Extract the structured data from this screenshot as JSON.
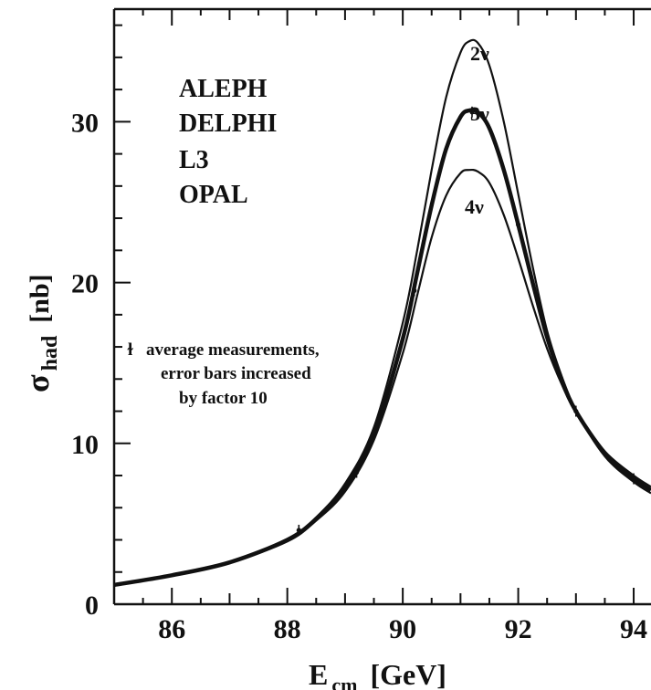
{
  "chart_data": {
    "type": "line",
    "title": "",
    "xlabel_main": "E",
    "xlabel_sub": "cm",
    "xlabel_unit": "[GeV]",
    "ylabel_main": "σ",
    "ylabel_sub": "had",
    "ylabel_unit": "[nb]",
    "xlim": [
      85,
      94.3
    ],
    "ylim": [
      0,
      37
    ],
    "x_ticks": [
      86,
      88,
      90,
      92,
      94
    ],
    "y_ticks": [
      0,
      10,
      20,
      30
    ],
    "x_tick_labels": [
      "86",
      "88",
      "90",
      "92",
      "94"
    ],
    "y_tick_labels": [
      "0",
      "10",
      "20",
      "30"
    ],
    "grid": false,
    "experiments": [
      "ALEPH",
      "DELPHI",
      "L3",
      "OPAL"
    ],
    "note": {
      "marker": "ɫ",
      "lines": [
        "average measurements,",
        "error bars increased",
        "by factor 10"
      ]
    },
    "series": [
      {
        "name": "2ν",
        "x": [
          85,
          86,
          87,
          88,
          88.5,
          89,
          89.5,
          90,
          90.25,
          90.5,
          90.75,
          91,
          91.15,
          91.3,
          91.5,
          91.75,
          92,
          92.25,
          92.5,
          92.75,
          93,
          93.5,
          94,
          94.3
        ],
        "y": [
          1.2,
          1.8,
          2.6,
          4.0,
          5.4,
          7.5,
          11.0,
          17.5,
          22.0,
          27.0,
          31.5,
          34.3,
          35.0,
          34.9,
          33.5,
          30.0,
          25.5,
          21.0,
          17.0,
          14.2,
          12.0,
          9.2,
          7.6,
          6.9
        ]
      },
      {
        "name": "3ν",
        "x": [
          85,
          86,
          87,
          88,
          88.5,
          89,
          89.5,
          90,
          90.25,
          90.5,
          90.75,
          91,
          91.15,
          91.3,
          91.5,
          91.75,
          92,
          92.25,
          92.5,
          92.75,
          93,
          93.5,
          94,
          94.3
        ],
        "y": [
          1.2,
          1.8,
          2.6,
          4.0,
          5.3,
          7.2,
          10.6,
          16.5,
          20.6,
          24.8,
          28.3,
          30.3,
          30.7,
          30.6,
          29.6,
          27.0,
          23.6,
          20.0,
          16.6,
          14.0,
          12.0,
          9.4,
          7.8,
          7.1
        ]
      },
      {
        "name": "4ν",
        "x": [
          85,
          86,
          87,
          88,
          88.5,
          89,
          89.5,
          90,
          90.25,
          90.5,
          90.75,
          91,
          91.15,
          91.3,
          91.5,
          91.75,
          92,
          92.25,
          92.5,
          92.75,
          93,
          93.5,
          94,
          94.3
        ],
        "y": [
          1.2,
          1.8,
          2.6,
          3.9,
          5.2,
          7.0,
          10.2,
          15.6,
          19.2,
          22.8,
          25.4,
          26.8,
          27.0,
          26.9,
          26.2,
          24.2,
          21.5,
          18.6,
          15.9,
          13.7,
          11.9,
          9.5,
          8.0,
          7.3
        ]
      }
    ],
    "measurements": {
      "x": [
        88.2,
        89.2,
        90.2,
        91.2,
        92.0,
        93.0,
        94.0
      ],
      "y": [
        4.6,
        8.2,
        19.5,
        30.6,
        23.6,
        12.0,
        7.8
      ]
    },
    "colors": {
      "curve": "#111111",
      "axis": "#111111",
      "background": "#ffffff"
    }
  }
}
